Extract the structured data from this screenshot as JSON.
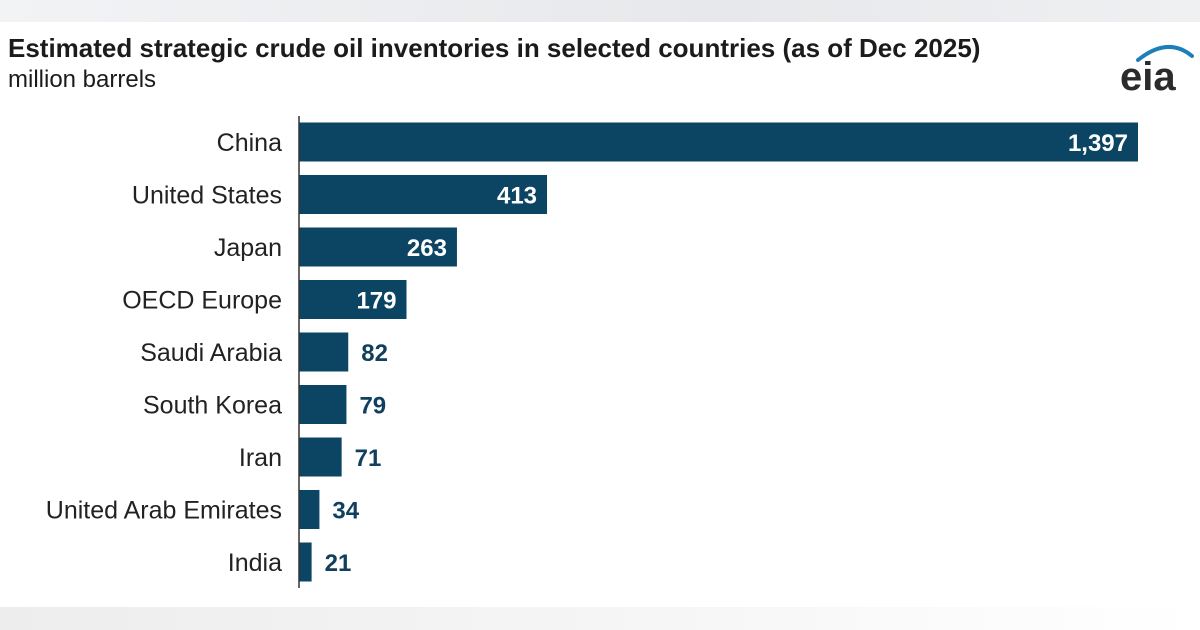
{
  "title": "Estimated strategic crude oil inventories in selected countries (as of Dec 2025)",
  "subtitle": "million barrels",
  "logo": {
    "text": "eia",
    "icon": "eia-logo-icon"
  },
  "colors": {
    "bar": "#0c4563",
    "label_inside": "#ffffff",
    "label_outside": "#10405e",
    "axis": "#333333"
  },
  "chart_data": {
    "type": "bar",
    "orientation": "horizontal",
    "title": "Estimated strategic crude oil inventories in selected countries (as of Dec 2025)",
    "subtitle": "million barrels",
    "xlabel": "",
    "ylabel": "",
    "categories": [
      "China",
      "United States",
      "Japan",
      "OECD Europe",
      "Saudi Arabia",
      "South Korea",
      "Iran",
      "United Arab Emirates",
      "India"
    ],
    "values": [
      1397,
      413,
      263,
      179,
      82,
      79,
      71,
      34,
      21
    ],
    "value_labels": [
      "1,397",
      "413",
      "263",
      "179",
      "82",
      "79",
      "71",
      "34",
      "21"
    ],
    "xlim": [
      0,
      1397
    ],
    "grid": false,
    "legend": "none"
  }
}
